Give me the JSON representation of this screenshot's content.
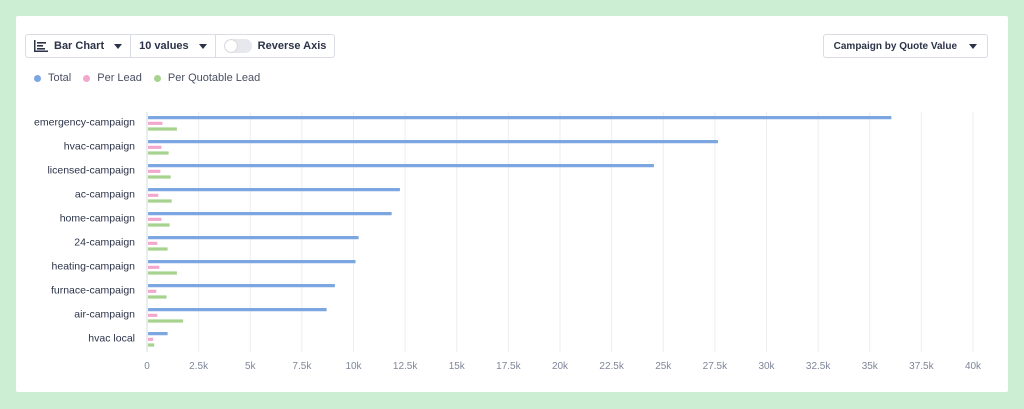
{
  "toolbar": {
    "chart_type_label": "Bar Chart",
    "values_count_label": "10 values",
    "reverse_axis_label": "Reverse Axis",
    "sort_label": "Campaign by Quote Value"
  },
  "chart_data": {
    "type": "bar",
    "orientation": "horizontal",
    "categories": [
      "emergency-campaign",
      "hvac-campaign",
      "licensed-campaign",
      "ac-campaign",
      "home-campaign",
      "24-campaign",
      "heating-campaign",
      "furnace-campaign",
      "air-campaign",
      "hvac local"
    ],
    "series": [
      {
        "name": "Total",
        "color": "#7ba6e0",
        "values": [
          36000,
          27600,
          24500,
          12200,
          11800,
          10200,
          10050,
          9050,
          8650,
          950
        ]
      },
      {
        "name": "Per Lead",
        "color": "#f2a7cc",
        "values": [
          700,
          650,
          600,
          500,
          650,
          450,
          550,
          400,
          450,
          250
        ]
      },
      {
        "name": "Per Quotable Lead",
        "color": "#a8d38f",
        "values": [
          1400,
          1000,
          1100,
          1150,
          1050,
          950,
          1400,
          900,
          1700,
          300
        ]
      }
    ],
    "x_ticks": [
      "0",
      "2.5k",
      "5k",
      "7.5k",
      "10k",
      "12.5k",
      "15k",
      "17.5k",
      "20k",
      "22.5k",
      "25k",
      "27.5k",
      "30k",
      "32.5k",
      "35k",
      "37.5k",
      "40k"
    ],
    "xlim": [
      0,
      40000
    ],
    "grid": true,
    "legend_position": "top-left"
  }
}
